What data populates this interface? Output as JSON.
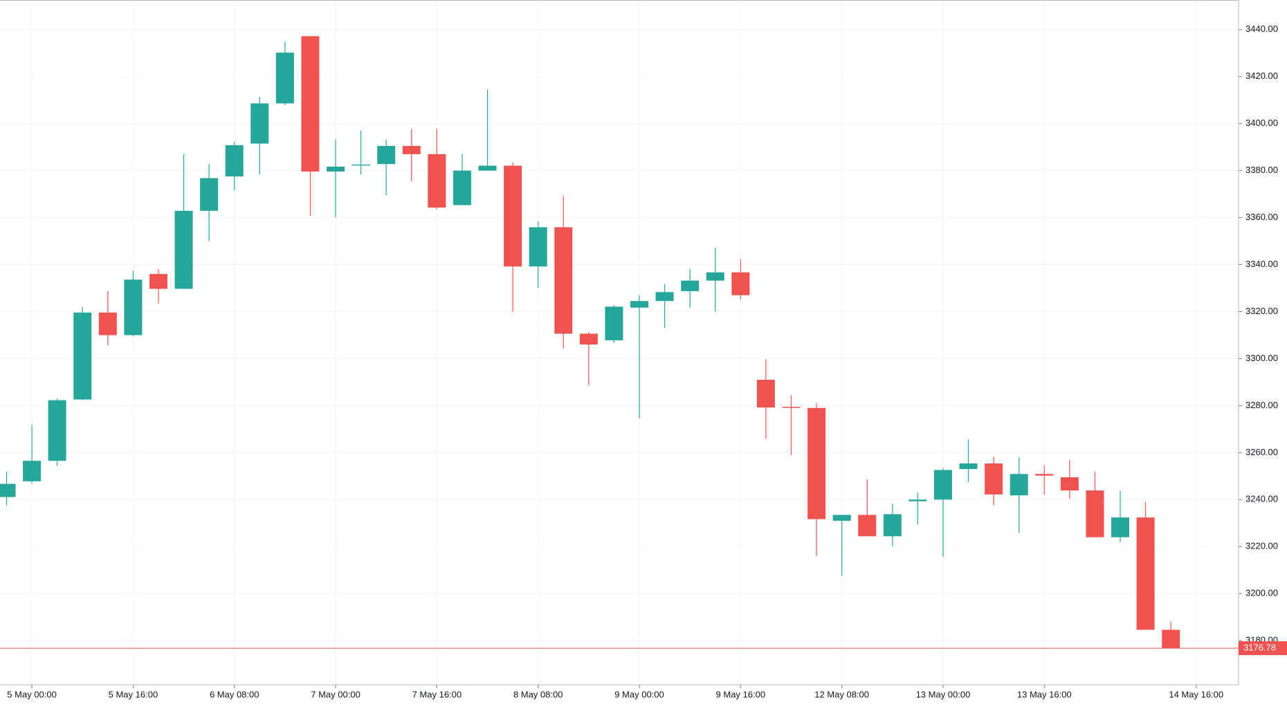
{
  "chart_data": {
    "type": "candlestick",
    "categories": [
      null,
      "5 May 00:00",
      null,
      null,
      null,
      "5 May 16:00",
      null,
      null,
      null,
      "6 May 08:00",
      null,
      null,
      null,
      "7 May 00:00",
      null,
      null,
      null,
      "7 May 16:00",
      null,
      null,
      null,
      "8 May 08:00",
      null,
      null,
      null,
      "9 May 00:00",
      null,
      null,
      null,
      "9 May 16:00",
      null,
      null,
      null,
      "12 May 08:00",
      null,
      null,
      null,
      "13 May 00:00",
      null,
      null,
      null,
      "13 May 16:00",
      null,
      null,
      null,
      null,
      null,
      "14 May 16:00"
    ],
    "open": [
      3241.1,
      3247.8,
      3256.5,
      3282.6,
      3319.6,
      3310.0,
      3336.0,
      3329.7,
      3362.9,
      3377.5,
      3391.5,
      3408.6,
      3437.2,
      3379.6,
      3382.4,
      3382.8,
      3390.5,
      3387.0,
      3365.3,
      3380.0,
      3382.1,
      3339.2,
      3355.9,
      3310.6,
      3307.8,
      3321.7,
      3324.5,
      3328.7,
      3333.2,
      3336.7,
      3291.0,
      3279.5,
      3279.0,
      3231.0,
      3233.5,
      3224.4,
      3239.3,
      3240.0,
      3253.0,
      3255.4,
      3241.8,
      3250.9,
      3249.5,
      3243.9,
      3224.0,
      3232.4,
      3184.6,
      null
    ],
    "high": [
      3251.9,
      3271.8,
      3283.0,
      3322.0,
      3328.7,
      3337.4,
      3338.0,
      3387.0,
      3382.8,
      3392.2,
      3411.4,
      3434.8,
      3437.2,
      3393.2,
      3397.0,
      3393.2,
      3397.8,
      3397.8,
      3387.0,
      3414.5,
      3383.5,
      3358.4,
      3369.2,
      3311.3,
      3322.8,
      3327.0,
      3331.8,
      3338.1,
      3347.2,
      3342.3,
      3299.7,
      3284.4,
      3281.0,
      3233.5,
      3248.5,
      3238.3,
      3242.9,
      3253.3,
      3265.6,
      3258.2,
      3257.9,
      3254.7,
      3256.8,
      3251.6,
      3243.6,
      3239.0,
      3188.0,
      null
    ],
    "low": [
      3237.6,
      3246.7,
      3254.4,
      3282.3,
      3305.7,
      3309.5,
      3323.5,
      3329.7,
      3350.0,
      3371.6,
      3378.2,
      3407.9,
      3360.8,
      3360.1,
      3378.2,
      3369.5,
      3375.5,
      3363.6,
      3365.3,
      3380.0,
      3320.0,
      3330.1,
      3304.3,
      3288.6,
      3306.7,
      3274.6,
      3313.0,
      3321.7,
      3320.0,
      3325.2,
      3265.9,
      3258.9,
      3216.0,
      3207.6,
      3224.4,
      3220.2,
      3229.6,
      3215.7,
      3247.4,
      3237.6,
      3225.8,
      3242.2,
      3240.4,
      3224.0,
      3221.9,
      3184.6,
      3176.78,
      null
    ],
    "close": [
      3246.7,
      3256.5,
      3282.3,
      3319.6,
      3310.0,
      3333.6,
      3329.7,
      3362.9,
      3376.8,
      3390.8,
      3408.6,
      3430.2,
      3379.6,
      3381.7,
      3382.6,
      3390.5,
      3387.0,
      3364.3,
      3380.0,
      3382.1,
      3339.2,
      3355.9,
      3310.6,
      3306.0,
      3322.1,
      3324.5,
      3328.3,
      3333.2,
      3336.7,
      3327.0,
      3279.2,
      3279.2,
      3231.7,
      3233.5,
      3224.4,
      3233.8,
      3240.0,
      3252.6,
      3255.4,
      3242.2,
      3250.9,
      3250.2,
      3243.9,
      3224.0,
      3232.4,
      3184.6,
      3176.78,
      null
    ],
    "up_color": "#26a69a",
    "down_color": "#ef5350",
    "last_price": 3176.78,
    "ylim": [
      3161.2,
      3452.6
    ],
    "yticks": [
      {
        "value": 3180,
        "label": "3180.00"
      },
      {
        "value": 3200,
        "label": "3200.00"
      },
      {
        "value": 3220,
        "label": "3220.00"
      },
      {
        "value": 3240,
        "label": "3240.00"
      },
      {
        "value": 3260,
        "label": "3260.00"
      },
      {
        "value": 3280,
        "label": "3280.00"
      },
      {
        "value": 3300,
        "label": "3300.00"
      },
      {
        "value": 3320,
        "label": "3320.00"
      },
      {
        "value": 3340,
        "label": "3340.00"
      },
      {
        "value": 3360,
        "label": "3360.00"
      },
      {
        "value": 3380,
        "label": "3380.00"
      },
      {
        "value": 3400,
        "label": "3400.00"
      },
      {
        "value": 3420,
        "label": "3420.00"
      },
      {
        "value": 3440,
        "label": "3440.00"
      }
    ],
    "grid": true
  }
}
